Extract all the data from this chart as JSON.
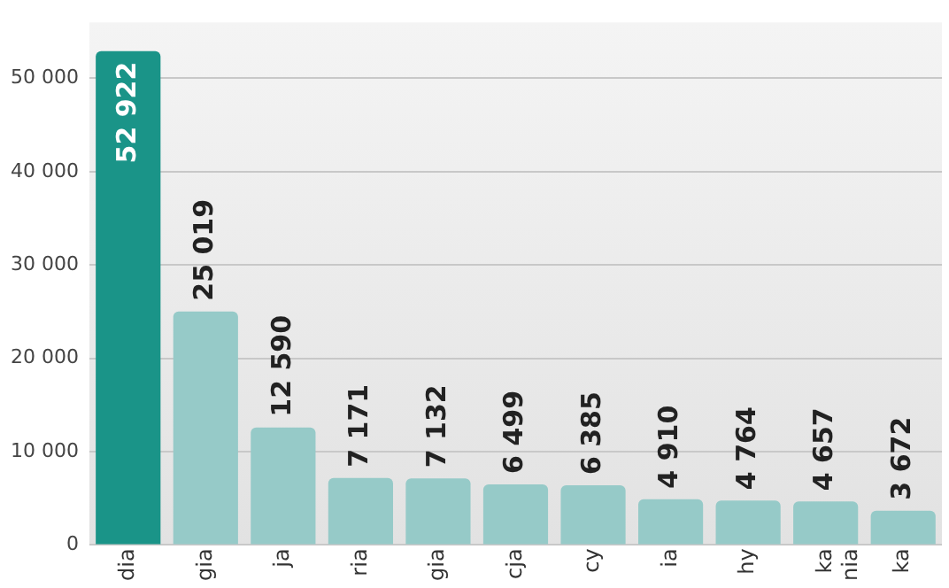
{
  "chart_data": {
    "type": "bar",
    "categories": [
      "dia",
      "gia",
      "ja",
      "ria",
      "gia",
      "cja",
      "cy",
      "ia",
      "hy",
      "ka nia",
      "ka"
    ],
    "values": [
      52922,
      25019,
      12590,
      7171,
      7132,
      6499,
      6385,
      4910,
      4764,
      4657,
      3672
    ],
    "colors": [
      "#1a9488",
      "#96cac8",
      "#96cac8",
      "#96cac8",
      "#96cac8",
      "#96cac8",
      "#96cac8",
      "#96cac8",
      "#96cac8",
      "#96cac8",
      "#96cac8"
    ],
    "value_labels": [
      "52 922",
      "25 019",
      "12 590",
      "7 171",
      "7 132",
      "6 499",
      "6 385",
      "4 910",
      "4 764",
      "4 657",
      "3 672"
    ],
    "ylim": [
      0,
      56000
    ],
    "yticks": [
      {
        "value": 0,
        "label": "0"
      },
      {
        "value": 10000,
        "label": "10 000"
      },
      {
        "value": 20000,
        "label": "20 000"
      },
      {
        "value": 30000,
        "label": "30 000"
      },
      {
        "value": 40000,
        "label": "40 000"
      },
      {
        "value": 50000,
        "label": "50 000"
      }
    ],
    "grid": "y"
  }
}
